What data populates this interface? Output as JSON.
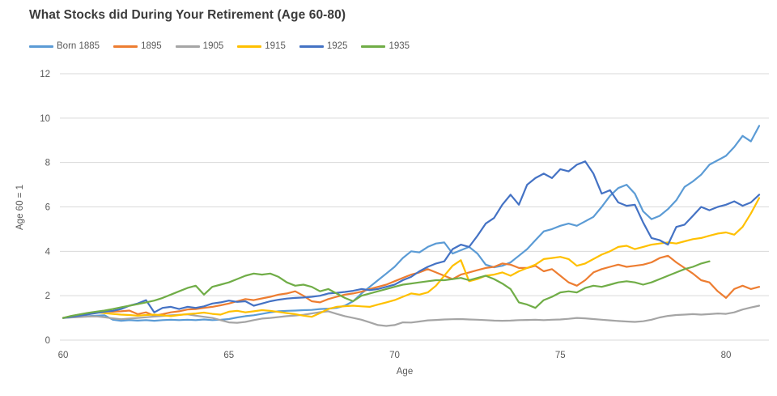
{
  "chart": {
    "title": "What Stocks did During Your Retirement (Age 60-80)"
  },
  "colors": {
    "background": "#FFFFFF",
    "grid": "#D9D9D9",
    "axis_text": "#595959",
    "title_text": "#3B3B3B"
  },
  "chart_data": {
    "type": "line",
    "title": "What Stocks did During Your Retirement (Age 60-80)",
    "xlabel": "Age",
    "ylabel": "Age 60 = 1",
    "xlim": [
      60,
      81.3
    ],
    "ylim": [
      0,
      12
    ],
    "x_ticks": [
      60,
      65,
      70,
      75,
      80
    ],
    "y_ticks": [
      0,
      2,
      4,
      6,
      8,
      10,
      12
    ],
    "grid": "horizontal",
    "legend_position": "top-left",
    "x_start": 60,
    "x_step": 0.25,
    "series": [
      {
        "name": "Born 1885",
        "color": "#5B9BD5",
        "values": [
          1.0,
          1.03,
          1.05,
          1.08,
          1.1,
          1.12,
          0.92,
          0.87,
          0.9,
          0.88,
          0.9,
          0.87,
          0.9,
          0.92,
          0.9,
          0.92,
          0.9,
          0.93,
          0.9,
          0.92,
          0.95,
          1.02,
          1.08,
          1.12,
          1.18,
          1.25,
          1.3,
          1.32,
          1.33,
          1.35,
          1.36,
          1.4,
          1.42,
          1.45,
          1.55,
          1.75,
          2.1,
          2.4,
          2.7,
          3.0,
          3.3,
          3.7,
          4.0,
          3.95,
          4.2,
          4.35,
          4.4,
          3.9,
          4.05,
          4.2,
          3.9,
          3.4,
          3.28,
          3.35,
          3.5,
          3.8,
          4.1,
          4.5,
          4.9,
          5.0,
          5.15,
          5.25,
          5.15,
          5.35,
          5.55,
          6.0,
          6.5,
          6.85,
          7.0,
          6.6,
          5.8,
          5.45,
          5.6,
          5.9,
          6.3,
          6.9,
          7.15,
          7.45,
          7.9,
          8.1,
          8.3,
          8.7,
          9.2,
          8.95,
          9.65
        ]
      },
      {
        "name": "1895",
        "color": "#ED7D31",
        "values": [
          1.0,
          1.06,
          1.12,
          1.18,
          1.25,
          1.3,
          1.28,
          1.3,
          1.33,
          1.17,
          1.25,
          1.1,
          1.17,
          1.25,
          1.3,
          1.38,
          1.4,
          1.45,
          1.5,
          1.57,
          1.65,
          1.75,
          1.85,
          1.8,
          1.88,
          1.95,
          2.05,
          2.1,
          2.2,
          2.0,
          1.75,
          1.7,
          1.85,
          1.95,
          2.05,
          2.1,
          2.18,
          2.3,
          2.4,
          2.5,
          2.65,
          2.8,
          2.95,
          3.05,
          3.2,
          3.05,
          2.9,
          2.75,
          2.95,
          3.05,
          3.15,
          3.25,
          3.3,
          3.45,
          3.4,
          3.25,
          3.25,
          3.35,
          3.1,
          3.2,
          2.9,
          2.6,
          2.45,
          2.7,
          3.05,
          3.2,
          3.3,
          3.4,
          3.3,
          3.35,
          3.4,
          3.5,
          3.7,
          3.8,
          3.5,
          3.25,
          3.0,
          2.7,
          2.6,
          2.2,
          1.9,
          2.3,
          2.45,
          2.3,
          2.4
        ]
      },
      {
        "name": "1905",
        "color": "#A5A5A5",
        "values": [
          1.0,
          1.02,
          1.04,
          1.06,
          1.07,
          1.03,
          0.98,
          0.94,
          0.97,
          1.0,
          1.03,
          1.06,
          1.09,
          1.12,
          1.14,
          1.16,
          1.1,
          1.05,
          1.0,
          0.9,
          0.8,
          0.78,
          0.82,
          0.9,
          0.97,
          1.0,
          1.04,
          1.08,
          1.11,
          1.14,
          1.2,
          1.26,
          1.3,
          1.18,
          1.08,
          1.0,
          0.92,
          0.8,
          0.68,
          0.64,
          0.68,
          0.8,
          0.79,
          0.84,
          0.89,
          0.91,
          0.93,
          0.94,
          0.95,
          0.93,
          0.92,
          0.9,
          0.88,
          0.87,
          0.88,
          0.9,
          0.91,
          0.92,
          0.9,
          0.92,
          0.93,
          0.96,
          1.0,
          0.98,
          0.95,
          0.92,
          0.89,
          0.86,
          0.84,
          0.82,
          0.85,
          0.92,
          1.02,
          1.09,
          1.13,
          1.15,
          1.17,
          1.15,
          1.17,
          1.2,
          1.18,
          1.25,
          1.38,
          1.47,
          1.55
        ]
      },
      {
        "name": "1915",
        "color": "#FFC000",
        "values": [
          1.0,
          1.08,
          1.15,
          1.22,
          1.25,
          1.22,
          1.18,
          1.15,
          1.13,
          1.1,
          1.13,
          1.15,
          1.12,
          1.08,
          1.13,
          1.17,
          1.2,
          1.24,
          1.18,
          1.15,
          1.28,
          1.32,
          1.25,
          1.3,
          1.35,
          1.32,
          1.27,
          1.22,
          1.17,
          1.1,
          1.05,
          1.22,
          1.4,
          1.5,
          1.53,
          1.55,
          1.52,
          1.5,
          1.6,
          1.7,
          1.8,
          1.95,
          2.1,
          2.05,
          2.15,
          2.45,
          2.9,
          3.35,
          3.6,
          2.65,
          2.75,
          2.9,
          2.95,
          3.05,
          2.9,
          3.1,
          3.25,
          3.4,
          3.65,
          3.7,
          3.75,
          3.65,
          3.35,
          3.45,
          3.65,
          3.85,
          4.0,
          4.2,
          4.25,
          4.1,
          4.2,
          4.3,
          4.35,
          4.4,
          4.35,
          4.45,
          4.55,
          4.6,
          4.7,
          4.8,
          4.85,
          4.75,
          5.1,
          5.7,
          6.4
        ]
      },
      {
        "name": "1925",
        "color": "#4472C4",
        "values": [
          1.0,
          1.05,
          1.1,
          1.16,
          1.22,
          1.28,
          1.32,
          1.4,
          1.55,
          1.65,
          1.8,
          1.25,
          1.45,
          1.5,
          1.4,
          1.5,
          1.45,
          1.52,
          1.65,
          1.7,
          1.78,
          1.72,
          1.75,
          1.55,
          1.65,
          1.75,
          1.82,
          1.87,
          1.9,
          1.92,
          1.95,
          2.0,
          2.1,
          2.13,
          2.17,
          2.22,
          2.3,
          2.25,
          2.3,
          2.4,
          2.5,
          2.7,
          2.85,
          3.1,
          3.3,
          3.45,
          3.55,
          4.1,
          4.3,
          4.2,
          4.7,
          5.25,
          5.5,
          6.1,
          6.55,
          6.1,
          7.0,
          7.3,
          7.5,
          7.3,
          7.7,
          7.6,
          7.9,
          8.05,
          7.5,
          6.6,
          6.75,
          6.2,
          6.05,
          6.1,
          5.3,
          4.6,
          4.5,
          4.3,
          5.1,
          5.2,
          5.6,
          6.0,
          5.85,
          6.0,
          6.1,
          6.25,
          6.05,
          6.2,
          6.55
        ]
      },
      {
        "name": "1935",
        "color": "#70AD47",
        "values": [
          1.0,
          1.09,
          1.16,
          1.23,
          1.28,
          1.33,
          1.4,
          1.48,
          1.55,
          1.62,
          1.7,
          1.78,
          1.9,
          2.05,
          2.2,
          2.35,
          2.45,
          2.05,
          2.4,
          2.5,
          2.6,
          2.75,
          2.9,
          3.0,
          2.95,
          3.0,
          2.85,
          2.6,
          2.45,
          2.5,
          2.4,
          2.2,
          2.3,
          2.1,
          1.9,
          1.75,
          2.0,
          2.1,
          2.2,
          2.3,
          2.4,
          2.5,
          2.55,
          2.6,
          2.65,
          2.7,
          2.7,
          2.75,
          2.8,
          2.7,
          2.8,
          2.9,
          2.75,
          2.55,
          2.3,
          1.7,
          1.6,
          1.45,
          1.8,
          1.95,
          2.15,
          2.2,
          2.15,
          2.35,
          2.45,
          2.4,
          2.5,
          2.6,
          2.65,
          2.6,
          2.5,
          2.6,
          2.75,
          2.9,
          3.05,
          3.2,
          3.3,
          3.45,
          3.55
        ]
      }
    ]
  }
}
